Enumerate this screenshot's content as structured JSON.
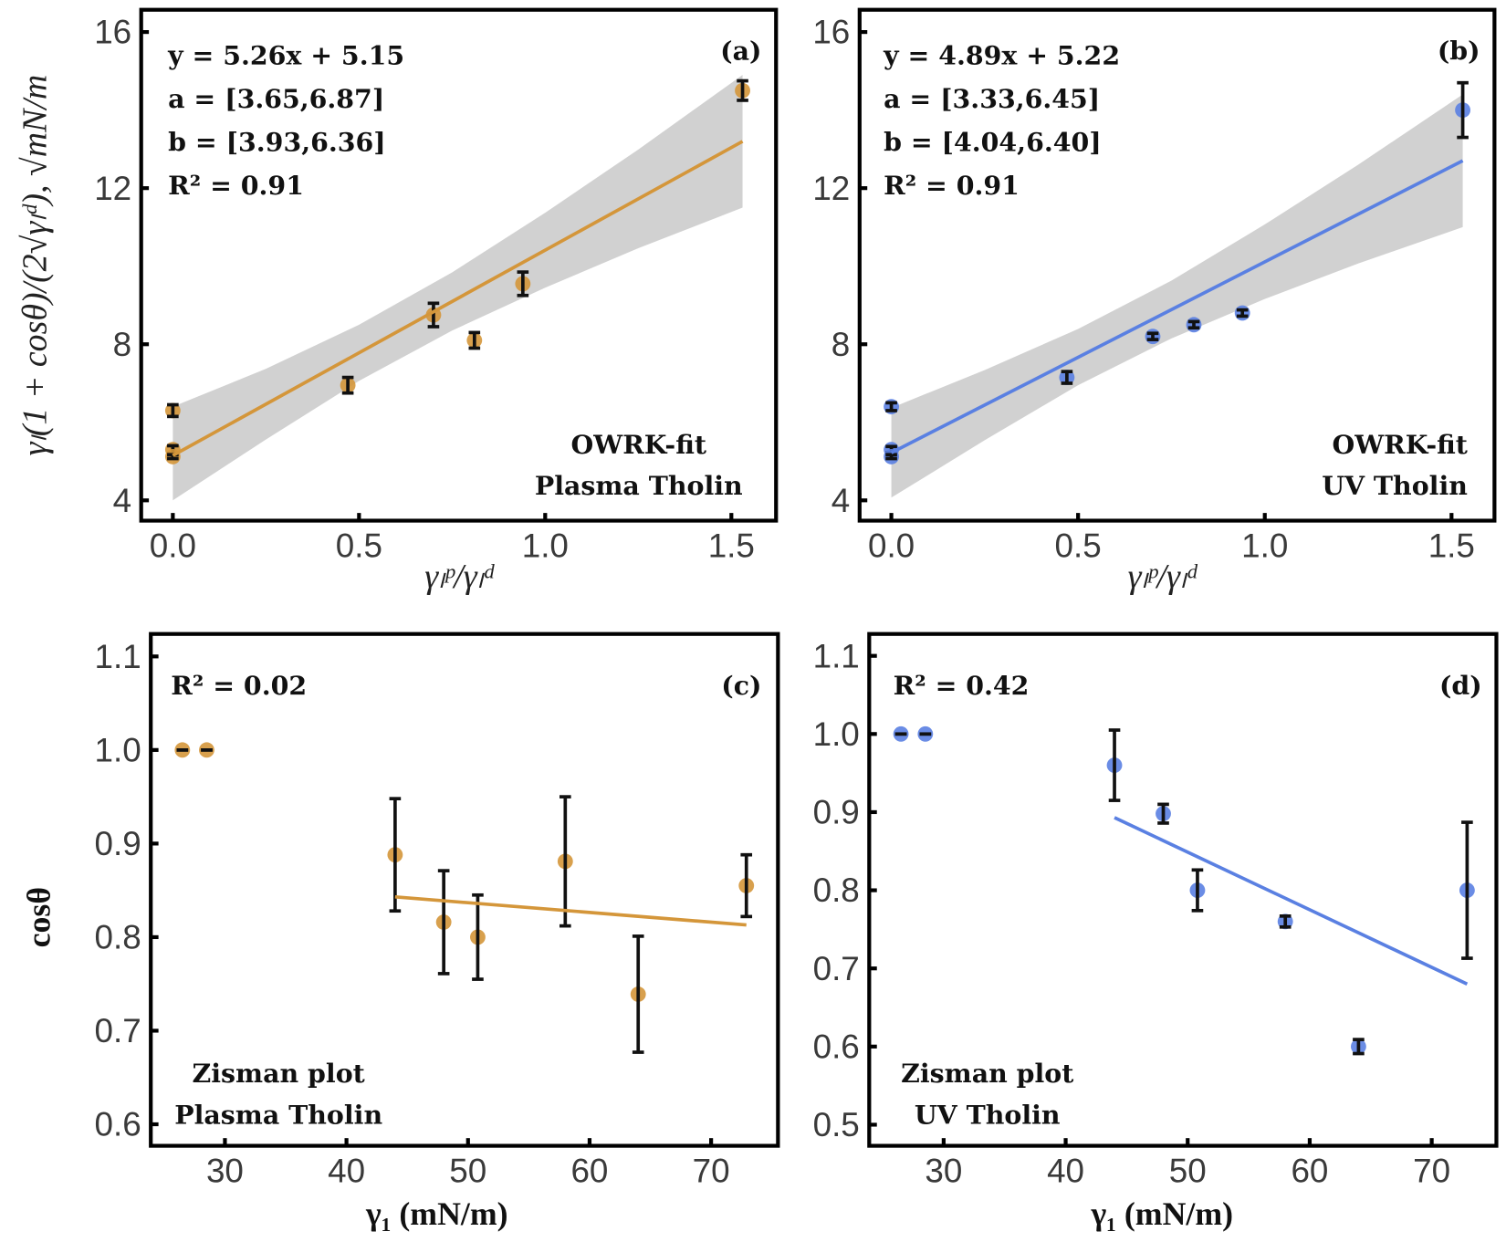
{
  "colors": {
    "plasma": "#D4963A",
    "uv": "#5A80E2",
    "band": "#C9C9C9",
    "errorbar": "#111111"
  },
  "chart_data": [
    {
      "panel": "(a)",
      "type": "scatter",
      "series_color": "plasma",
      "xlabel": "γₗᵖ/γₗᵈ",
      "ylabel": "γₗ(1 + cosθ)/(2√γₗᵈ), √mN/m",
      "xlim": [
        -0.085,
        1.62
      ],
      "ylim": [
        3.48,
        16.57
      ],
      "xticks": [
        0.0,
        0.5,
        1.0,
        1.5
      ],
      "xtick_labels": [
        "0.0",
        "0.5",
        "1.0",
        "1.5"
      ],
      "yticks": [
        4,
        8,
        12,
        16
      ],
      "ytick_labels": [
        "4",
        "8",
        "12",
        "16"
      ],
      "points": [
        {
          "x": 0.0,
          "y": 6.3,
          "err": 0.15
        },
        {
          "x": 0.0,
          "y": 5.3,
          "err": 0.1
        },
        {
          "x": 0.0,
          "y": 5.12,
          "err": 0.05
        },
        {
          "x": 0.47,
          "y": 6.95,
          "err": 0.2
        },
        {
          "x": 0.7,
          "y": 8.75,
          "err": 0.3
        },
        {
          "x": 0.81,
          "y": 8.1,
          "err": 0.2
        },
        {
          "x": 0.94,
          "y": 9.55,
          "err": 0.3
        },
        {
          "x": 1.53,
          "y": 14.5,
          "err": 0.25
        }
      ],
      "fit": {
        "slope": 5.26,
        "intercept": 5.15,
        "x_range": [
          0.0,
          1.53
        ]
      },
      "confidence_band": {
        "x": [
          0,
          0.25,
          0.5,
          0.75,
          1.0,
          1.25,
          1.53
        ],
        "lower": [
          4.0,
          5.56,
          7.06,
          8.35,
          9.45,
          10.46,
          11.5
        ],
        "upper": [
          6.4,
          7.37,
          8.5,
          9.84,
          11.37,
          12.99,
          14.9
        ]
      },
      "annotations": [
        "y = 5.26x + 5.15",
        "a = [3.65,6.87]",
        "b = [3.93,6.36]",
        "R² = 0.91"
      ],
      "caption": [
        "OWRK-fit",
        "Plasma Tholin"
      ]
    },
    {
      "panel": "(b)",
      "type": "scatter",
      "series_color": "uv",
      "xlabel": "γₗᵖ/γₗᵈ",
      "ylabel": "",
      "xlim": [
        -0.085,
        1.615
      ],
      "ylim": [
        3.48,
        16.57
      ],
      "xticks": [
        0.0,
        0.5,
        1.0,
        1.5
      ],
      "xtick_labels": [
        "0.0",
        "0.5",
        "1.0",
        "1.5"
      ],
      "yticks": [
        4,
        8,
        12,
        16
      ],
      "ytick_labels": [
        "4",
        "8",
        "12",
        "16"
      ],
      "points": [
        {
          "x": 0.0,
          "y": 6.4,
          "err": 0.1
        },
        {
          "x": 0.0,
          "y": 5.3,
          "err": 0.08
        },
        {
          "x": 0.0,
          "y": 5.12,
          "err": 0.05
        },
        {
          "x": 0.47,
          "y": 7.15,
          "err": 0.15
        },
        {
          "x": 0.7,
          "y": 8.2,
          "err": 0.08
        },
        {
          "x": 0.81,
          "y": 8.5,
          "err": 0.08
        },
        {
          "x": 0.94,
          "y": 8.8,
          "err": 0.08
        },
        {
          "x": 1.53,
          "y": 14.0,
          "err": 0.7
        }
      ],
      "fit": {
        "slope": 4.89,
        "intercept": 5.22,
        "x_range": [
          0.0,
          1.53
        ]
      },
      "confidence_band": {
        "x": [
          0,
          0.25,
          0.5,
          0.75,
          1.0,
          1.25,
          1.53
        ],
        "lower": [
          4.07,
          5.54,
          6.95,
          8.15,
          9.16,
          10.07,
          11.0
        ],
        "upper": [
          6.37,
          7.34,
          8.39,
          9.63,
          11.07,
          12.6,
          14.4
        ]
      },
      "annotations": [
        "y = 4.89x + 5.22",
        "a = [3.33,6.45]",
        "b = [4.04,6.40]",
        "R² = 0.91"
      ],
      "caption": [
        "OWRK-fit",
        "UV Tholin"
      ]
    },
    {
      "panel": "(c)",
      "type": "scatter",
      "series_color": "plasma",
      "xlabel": "γ₁ (mN/m)",
      "ylabel": "cosθ",
      "xlim": [
        23.9,
        75.5
      ],
      "ylim": [
        0.577,
        1.124
      ],
      "xticks": [
        30,
        40,
        50,
        60,
        70
      ],
      "xtick_labels": [
        "30",
        "40",
        "50",
        "60",
        "70"
      ],
      "yticks": [
        0.6,
        0.7,
        0.8,
        0.9,
        1.0,
        1.1
      ],
      "ytick_labels": [
        "0.6",
        "0.7",
        "0.8",
        "0.9",
        "1.0",
        "1.1"
      ],
      "points": [
        {
          "x": 26.5,
          "y": 1.0,
          "err": 0.0
        },
        {
          "x": 28.5,
          "y": 1.0,
          "err": 0.0
        },
        {
          "x": 44,
          "y": 0.888,
          "err": 0.06
        },
        {
          "x": 48,
          "y": 0.816,
          "err": 0.055
        },
        {
          "x": 50.8,
          "y": 0.8,
          "err": 0.045
        },
        {
          "x": 58,
          "y": 0.881,
          "err": 0.069
        },
        {
          "x": 64,
          "y": 0.739,
          "err": 0.062
        },
        {
          "x": 72.9,
          "y": 0.855,
          "err": 0.033
        }
      ],
      "fit_line": {
        "x": [
          44,
          72.9
        ],
        "y": [
          0.843,
          0.813
        ]
      },
      "annotations": [
        "R² = 0.02"
      ],
      "caption": [
        "Zisman plot",
        "Plasma Tholin"
      ]
    },
    {
      "panel": "(d)",
      "type": "scatter",
      "series_color": "uv",
      "xlabel": "γ₁ (mN/m)",
      "ylabel": "",
      "xlim": [
        23.9,
        75.3
      ],
      "ylim": [
        0.473,
        1.128
      ],
      "xticks": [
        30,
        40,
        50,
        60,
        70
      ],
      "xtick_labels": [
        "30",
        "40",
        "50",
        "60",
        "70"
      ],
      "yticks": [
        0.5,
        0.6,
        0.7,
        0.8,
        0.9,
        1.0,
        1.1
      ],
      "ytick_labels": [
        "0.5",
        "0.6",
        "0.7",
        "0.8",
        "0.9",
        "1.0",
        "1.1"
      ],
      "points": [
        {
          "x": 26.5,
          "y": 1.0,
          "err": 0.0
        },
        {
          "x": 28.5,
          "y": 1.0,
          "err": 0.0
        },
        {
          "x": 44,
          "y": 0.96,
          "err": 0.045
        },
        {
          "x": 48,
          "y": 0.898,
          "err": 0.012
        },
        {
          "x": 50.8,
          "y": 0.8,
          "err": 0.026
        },
        {
          "x": 58,
          "y": 0.76,
          "err": 0.007
        },
        {
          "x": 64,
          "y": 0.6,
          "err": 0.009
        },
        {
          "x": 72.9,
          "y": 0.8,
          "err": 0.087
        }
      ],
      "fit_line": {
        "x": [
          44,
          72.9
        ],
        "y": [
          0.893,
          0.68
        ]
      },
      "annotations": [
        "R² = 0.42"
      ],
      "caption": [
        "Zisman plot",
        "UV Tholin"
      ]
    }
  ]
}
